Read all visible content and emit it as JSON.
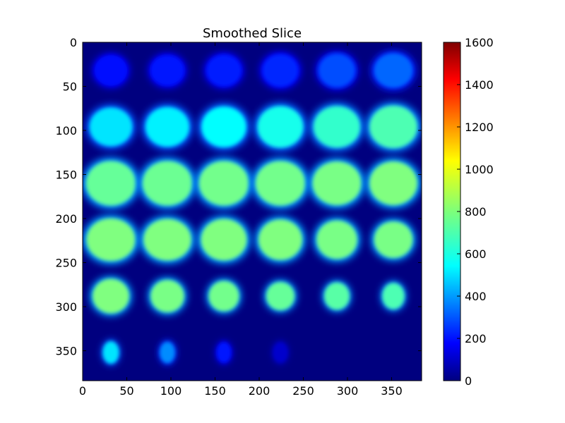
{
  "chart_data": {
    "type": "heatmap",
    "title": "Smoothed Slice",
    "xlabel": "",
    "ylabel": "",
    "xlim": [
      0,
      384
    ],
    "ylim": [
      384,
      0
    ],
    "x_ticks": [
      "0",
      "50",
      "100",
      "150",
      "200",
      "250",
      "300",
      "350"
    ],
    "y_ticks": [
      "0",
      "50",
      "100",
      "150",
      "200",
      "250",
      "300",
      "350"
    ],
    "colormap": "jet",
    "colorbar": {
      "min": 0,
      "max": 1600,
      "ticks": [
        "0",
        "200",
        "400",
        "600",
        "800",
        "1000",
        "1200",
        "1400",
        "1600"
      ]
    },
    "montage": {
      "grid": [
        6,
        6
      ],
      "tile_size": 64,
      "cells": [
        {
          "row": 0,
          "col": 0,
          "rx": 0.32,
          "ry": 0.3,
          "level": 220
        },
        {
          "row": 0,
          "col": 1,
          "rx": 0.33,
          "ry": 0.3,
          "level": 230
        },
        {
          "row": 0,
          "col": 2,
          "rx": 0.34,
          "ry": 0.31,
          "level": 240
        },
        {
          "row": 0,
          "col": 3,
          "rx": 0.35,
          "ry": 0.32,
          "level": 260
        },
        {
          "row": 0,
          "col": 4,
          "rx": 0.36,
          "ry": 0.33,
          "level": 320
        },
        {
          "row": 0,
          "col": 5,
          "rx": 0.38,
          "ry": 0.34,
          "level": 360
        },
        {
          "row": 1,
          "col": 0,
          "rx": 0.42,
          "ry": 0.38,
          "level": 560
        },
        {
          "row": 1,
          "col": 1,
          "rx": 0.43,
          "ry": 0.39,
          "level": 580
        },
        {
          "row": 1,
          "col": 2,
          "rx": 0.44,
          "ry": 0.4,
          "level": 600
        },
        {
          "row": 1,
          "col": 3,
          "rx": 0.45,
          "ry": 0.41,
          "level": 630
        },
        {
          "row": 1,
          "col": 4,
          "rx": 0.46,
          "ry": 0.41,
          "level": 680
        },
        {
          "row": 1,
          "col": 5,
          "rx": 0.47,
          "ry": 0.42,
          "level": 720
        },
        {
          "row": 2,
          "col": 0,
          "rx": 0.49,
          "ry": 0.44,
          "level": 760
        },
        {
          "row": 2,
          "col": 1,
          "rx": 0.49,
          "ry": 0.44,
          "level": 770
        },
        {
          "row": 2,
          "col": 2,
          "rx": 0.49,
          "ry": 0.44,
          "level": 780
        },
        {
          "row": 2,
          "col": 3,
          "rx": 0.49,
          "ry": 0.44,
          "level": 780
        },
        {
          "row": 2,
          "col": 4,
          "rx": 0.48,
          "ry": 0.43,
          "level": 790
        },
        {
          "row": 2,
          "col": 5,
          "rx": 0.47,
          "ry": 0.43,
          "level": 800
        },
        {
          "row": 3,
          "col": 0,
          "rx": 0.48,
          "ry": 0.42,
          "level": 800
        },
        {
          "row": 3,
          "col": 1,
          "rx": 0.47,
          "ry": 0.41,
          "level": 800
        },
        {
          "row": 3,
          "col": 2,
          "rx": 0.45,
          "ry": 0.41,
          "level": 800
        },
        {
          "row": 3,
          "col": 3,
          "rx": 0.43,
          "ry": 0.4,
          "level": 800
        },
        {
          "row": 3,
          "col": 4,
          "rx": 0.4,
          "ry": 0.38,
          "level": 790
        },
        {
          "row": 3,
          "col": 5,
          "rx": 0.38,
          "ry": 0.36,
          "level": 790
        },
        {
          "row": 4,
          "col": 0,
          "rx": 0.36,
          "ry": 0.34,
          "level": 800
        },
        {
          "row": 4,
          "col": 1,
          "rx": 0.33,
          "ry": 0.32,
          "level": 790
        },
        {
          "row": 4,
          "col": 2,
          "rx": 0.3,
          "ry": 0.3,
          "level": 780
        },
        {
          "row": 4,
          "col": 3,
          "rx": 0.28,
          "ry": 0.28,
          "level": 760
        },
        {
          "row": 4,
          "col": 4,
          "rx": 0.25,
          "ry": 0.27,
          "level": 740
        },
        {
          "row": 4,
          "col": 5,
          "rx": 0.22,
          "ry": 0.26,
          "level": 720
        },
        {
          "row": 5,
          "col": 0,
          "rx": 0.16,
          "ry": 0.22,
          "level": 560
        },
        {
          "row": 5,
          "col": 1,
          "rx": 0.15,
          "ry": 0.21,
          "level": 420
        },
        {
          "row": 5,
          "col": 2,
          "rx": 0.14,
          "ry": 0.2,
          "level": 230
        },
        {
          "row": 5,
          "col": 3,
          "rx": 0.13,
          "ry": 0.19,
          "level": 120
        },
        {
          "row": 5,
          "col": 4,
          "rx": 0.0,
          "ry": 0.0,
          "level": 0
        },
        {
          "row": 5,
          "col": 5,
          "rx": 0.0,
          "ry": 0.0,
          "level": 0
        }
      ]
    }
  }
}
